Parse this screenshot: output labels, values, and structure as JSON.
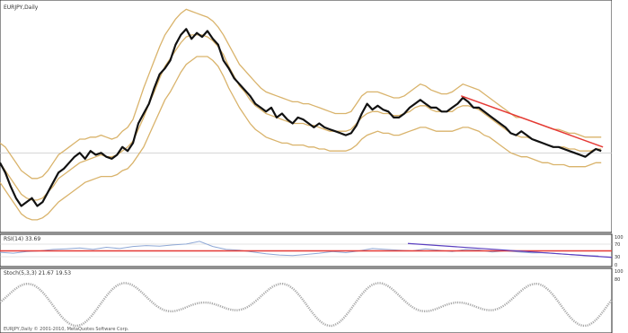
{
  "chart_title": "EURJPY,Daily",
  "rsi_label": "RSI(14) 33.69",
  "stoch_label": "Stoch(5,3,3) 21.67 19.53",
  "copyright": "EURJPY,Daily © 2001-2010, MetaQuotes Software Corp.",
  "rsi_axis": [
    "100",
    "70",
    "30",
    "0"
  ],
  "stoch_axis": [
    "100",
    "80"
  ],
  "colors": {
    "price": "#111111",
    "bands": "#d9b36b",
    "trendline": "#e53935",
    "rsi": "#8fa8d6",
    "rsi_level": "#e53935",
    "divergence": "#5a3fc0",
    "stoch": "#a8a8a8",
    "grid": "#c8c8c8",
    "frame": "#222222"
  },
  "chart_data": [
    {
      "type": "line",
      "pane": "price",
      "grid": false,
      "x": [
        0,
        6,
        12,
        18,
        24,
        30,
        36,
        42,
        48,
        54,
        60,
        66,
        72,
        78,
        84,
        90,
        96,
        102,
        108,
        114,
        120,
        126,
        132,
        138,
        144,
        150,
        156,
        162,
        168,
        174,
        180,
        186,
        192,
        198,
        204,
        210,
        216,
        222,
        228,
        234,
        240,
        246,
        252,
        258,
        264,
        270,
        276,
        282,
        288,
        294,
        300,
        306,
        312,
        318,
        324,
        330,
        336,
        342,
        348,
        354,
        360,
        366,
        372,
        378,
        384,
        390,
        396,
        402,
        408,
        414,
        420,
        426,
        432,
        438,
        444,
        450,
        456,
        462,
        468,
        474,
        480,
        486,
        492,
        498,
        504,
        510,
        516,
        522,
        528,
        534,
        540,
        546,
        552,
        558,
        564,
        570,
        576,
        582,
        588,
        594,
        600,
        606,
        612,
        618,
        624,
        630,
        636,
        642,
        648,
        654,
        660,
        666,
        672,
        678
      ],
      "series": [
        {
          "values": [
            0.3,
            0.25,
            0.18,
            0.12,
            0.08,
            0.1,
            0.12,
            0.08,
            0.1,
            0.15,
            0.2,
            0.25,
            0.27,
            0.3,
            0.33,
            0.35,
            0.32,
            0.36,
            0.34,
            0.35,
            0.33,
            0.32,
            0.34,
            0.38,
            0.36,
            0.4,
            0.5,
            0.55,
            0.6,
            0.68,
            0.75,
            0.78,
            0.82,
            0.9,
            0.95,
            0.98,
            0.93,
            0.96,
            0.94,
            0.97,
            0.93,
            0.9,
            0.82,
            0.78,
            0.73,
            0.7,
            0.67,
            0.64,
            0.6,
            0.58,
            0.56,
            0.58,
            0.53,
            0.55,
            0.52,
            0.5,
            0.53,
            0.52,
            0.5,
            0.48,
            0.5,
            0.48,
            0.47,
            0.46,
            0.45,
            0.44,
            0.45,
            0.49,
            0.55,
            0.6,
            0.57,
            0.59,
            0.57,
            0.56,
            0.53,
            0.53,
            0.55,
            0.58,
            0.6,
            0.62,
            0.6,
            0.58,
            0.58,
            0.56,
            0.56,
            0.58,
            0.6,
            0.63,
            0.61,
            0.58,
            0.58,
            0.56,
            0.54,
            0.52,
            0.5,
            0.48,
            0.45,
            0.44,
            0.46,
            0.44,
            0.42,
            0.41,
            0.4,
            0.39,
            0.38,
            0.38,
            0.37,
            0.36,
            0.35,
            0.34,
            0.33,
            0.35,
            0.37,
            0.36
          ]
        },
        {
          "values": [
            0.4,
            0.38,
            0.34,
            0.3,
            0.26,
            0.24,
            0.22,
            0.22,
            0.23,
            0.26,
            0.3,
            0.34,
            0.36,
            0.38,
            0.4,
            0.42,
            0.42,
            0.43,
            0.43,
            0.44,
            0.43,
            0.42,
            0.43,
            0.46,
            0.48,
            0.52,
            0.6,
            0.68,
            0.75,
            0.82,
            0.89,
            0.95,
            0.99,
            1.03,
            1.06,
            1.08,
            1.07,
            1.06,
            1.05,
            1.04,
            1.02,
            0.99,
            0.95,
            0.9,
            0.85,
            0.8,
            0.77,
            0.74,
            0.71,
            0.68,
            0.66,
            0.65,
            0.64,
            0.63,
            0.62,
            0.61,
            0.61,
            0.6,
            0.6,
            0.59,
            0.58,
            0.57,
            0.56,
            0.55,
            0.55,
            0.55,
            0.56,
            0.6,
            0.64,
            0.66,
            0.66,
            0.66,
            0.65,
            0.64,
            0.63,
            0.63,
            0.64,
            0.66,
            0.68,
            0.7,
            0.69,
            0.67,
            0.66,
            0.65,
            0.65,
            0.66,
            0.68,
            0.7,
            0.69,
            0.68,
            0.67,
            0.65,
            0.63,
            0.61,
            0.59,
            0.57,
            0.55,
            0.53,
            0.53,
            0.52,
            0.51,
            0.5,
            0.49,
            0.48,
            0.47,
            0.47,
            0.46,
            0.45,
            0.45,
            0.44,
            0.43,
            0.43,
            0.43,
            0.43
          ]
        },
        {
          "values": [
            0.2,
            0.16,
            0.12,
            0.08,
            0.04,
            0.02,
            0.01,
            0.01,
            0.02,
            0.04,
            0.07,
            0.1,
            0.12,
            0.14,
            0.16,
            0.18,
            0.2,
            0.21,
            0.22,
            0.23,
            0.23,
            0.23,
            0.24,
            0.26,
            0.27,
            0.3,
            0.34,
            0.38,
            0.44,
            0.5,
            0.56,
            0.62,
            0.66,
            0.71,
            0.76,
            0.8,
            0.82,
            0.84,
            0.84,
            0.84,
            0.82,
            0.79,
            0.74,
            0.68,
            0.63,
            0.58,
            0.54,
            0.5,
            0.47,
            0.45,
            0.43,
            0.42,
            0.41,
            0.4,
            0.4,
            0.39,
            0.39,
            0.39,
            0.38,
            0.38,
            0.37,
            0.37,
            0.36,
            0.36,
            0.36,
            0.36,
            0.37,
            0.39,
            0.42,
            0.44,
            0.45,
            0.46,
            0.45,
            0.45,
            0.44,
            0.44,
            0.45,
            0.46,
            0.47,
            0.48,
            0.48,
            0.47,
            0.46,
            0.46,
            0.46,
            0.46,
            0.47,
            0.48,
            0.48,
            0.47,
            0.46,
            0.44,
            0.43,
            0.41,
            0.39,
            0.37,
            0.35,
            0.34,
            0.33,
            0.33,
            0.32,
            0.31,
            0.3,
            0.3,
            0.29,
            0.29,
            0.29,
            0.28,
            0.28,
            0.28,
            0.28,
            0.29,
            0.3,
            0.3
          ]
        },
        {
          "values": [
            0.3,
            0.26,
            0.22,
            0.18,
            0.14,
            0.12,
            0.11,
            0.11,
            0.12,
            0.15,
            0.18,
            0.22,
            0.24,
            0.26,
            0.28,
            0.3,
            0.31,
            0.32,
            0.33,
            0.34,
            0.33,
            0.33,
            0.34,
            0.36,
            0.38,
            0.41,
            0.47,
            0.53,
            0.6,
            0.66,
            0.73,
            0.79,
            0.83,
            0.87,
            0.91,
            0.94,
            0.95,
            0.95,
            0.95,
            0.94,
            0.92,
            0.89,
            0.85,
            0.79,
            0.74,
            0.69,
            0.66,
            0.62,
            0.59,
            0.57,
            0.55,
            0.54,
            0.53,
            0.52,
            0.51,
            0.5,
            0.5,
            0.5,
            0.49,
            0.49,
            0.48,
            0.47,
            0.46,
            0.46,
            0.46,
            0.46,
            0.47,
            0.5,
            0.53,
            0.55,
            0.56,
            0.56,
            0.55,
            0.55,
            0.54,
            0.54,
            0.55,
            0.56,
            0.58,
            0.59,
            0.59,
            0.57,
            0.56,
            0.56,
            0.56,
            0.56,
            0.58,
            0.59,
            0.59,
            0.58,
            0.57,
            0.55,
            0.53,
            0.51,
            0.49,
            0.47,
            0.45,
            0.44,
            0.43,
            0.43,
            0.42,
            0.41,
            0.4,
            0.39,
            0.38,
            0.38,
            0.38,
            0.37,
            0.37,
            0.36,
            0.36,
            0.36,
            0.37,
            0.37
          ]
        }
      ],
      "trendline": {
        "x": [
          520,
          680
        ],
        "y": [
          0.64,
          0.38
        ]
      },
      "level_y": 0.35
    },
    {
      "type": "line",
      "pane": "rsi",
      "x": [
        0,
        15,
        30,
        45,
        60,
        75,
        90,
        105,
        120,
        135,
        150,
        165,
        180,
        195,
        210,
        225,
        240,
        255,
        270,
        285,
        300,
        315,
        330,
        345,
        360,
        375,
        390,
        405,
        420,
        435,
        450,
        465,
        480,
        495,
        510,
        525,
        540,
        555,
        570,
        585,
        600,
        615,
        630,
        645,
        660,
        675
      ],
      "values": [
        45,
        42,
        48,
        50,
        55,
        57,
        60,
        55,
        62,
        58,
        65,
        68,
        66,
        70,
        73,
        82,
        65,
        55,
        52,
        46,
        40,
        36,
        34,
        38,
        42,
        48,
        44,
        50,
        58,
        55,
        52,
        50,
        57,
        52,
        48,
        55,
        53,
        46,
        50,
        46,
        43,
        44,
        40,
        37,
        34,
        33
      ],
      "level": 50,
      "ylim": [
        0,
        100
      ],
      "divergence": {
        "x": [
          460,
          690
        ],
        "y": [
          75,
          28
        ]
      }
    },
    {
      "type": "line",
      "pane": "stochastic",
      "ylim": [
        0,
        100
      ]
    }
  ]
}
